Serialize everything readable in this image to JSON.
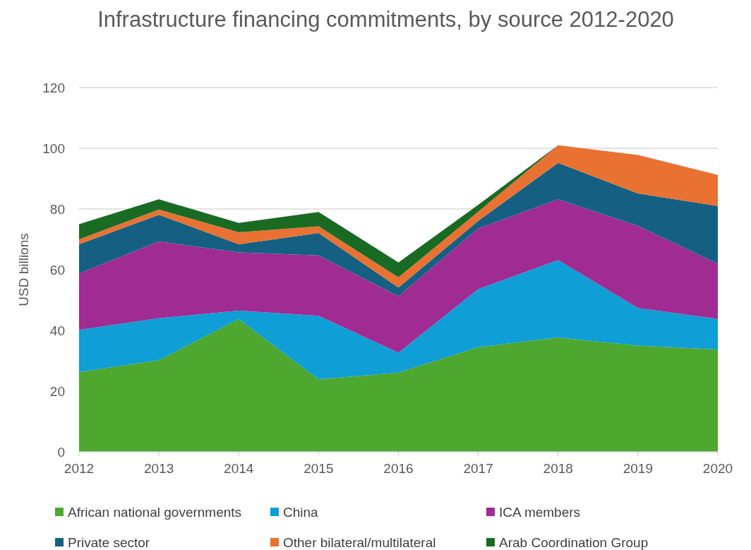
{
  "chart_data": {
    "type": "area",
    "stacked": true,
    "title": "Infrastructure financing commitments, by source 2012-2020",
    "ylabel": "USD billions",
    "x": [
      2012,
      2013,
      2014,
      2015,
      2016,
      2017,
      2018,
      2019,
      2020
    ],
    "xlim": [
      2012,
      2020
    ],
    "xticks": [
      2012,
      2013,
      2014,
      2015,
      2016,
      2017,
      2018,
      2019,
      2020
    ],
    "ylim": [
      0,
      120
    ],
    "yticks": [
      0,
      20,
      40,
      60,
      80,
      100,
      120
    ],
    "grid": "y",
    "legend": "bottom",
    "series": [
      {
        "name": "African national governments",
        "color": "#4ea72e",
        "values": [
          26.3,
          30.2,
          43.7,
          23.9,
          26.1,
          34.5,
          37.7,
          35.0,
          33.7
        ]
      },
      {
        "name": "China",
        "color": "#0f9ed5",
        "values": [
          13.9,
          13.8,
          2.8,
          20.9,
          6.6,
          19.1,
          25.5,
          12.4,
          10.1
        ]
      },
      {
        "name": "ICA members",
        "color": "#a02b93",
        "values": [
          18.6,
          25.3,
          19.2,
          19.9,
          18.6,
          20.0,
          20.0,
          27.0,
          18.2
        ]
      },
      {
        "name": "Private sector",
        "color": "#156082",
        "values": [
          9.6,
          8.8,
          2.7,
          7.4,
          2.8,
          2.5,
          12.0,
          10.7,
          19.0
        ]
      },
      {
        "name": "Other bilateral/multilateral",
        "color": "#e97132",
        "values": [
          1.6,
          1.7,
          3.9,
          2.2,
          3.4,
          3.0,
          5.8,
          12.7,
          10.2
        ]
      },
      {
        "name": "Arab Coordination Group",
        "color": "#196b24",
        "values": [
          5.0,
          3.4,
          3.1,
          4.7,
          4.9,
          2.3,
          0,
          0,
          0
        ]
      }
    ]
  }
}
